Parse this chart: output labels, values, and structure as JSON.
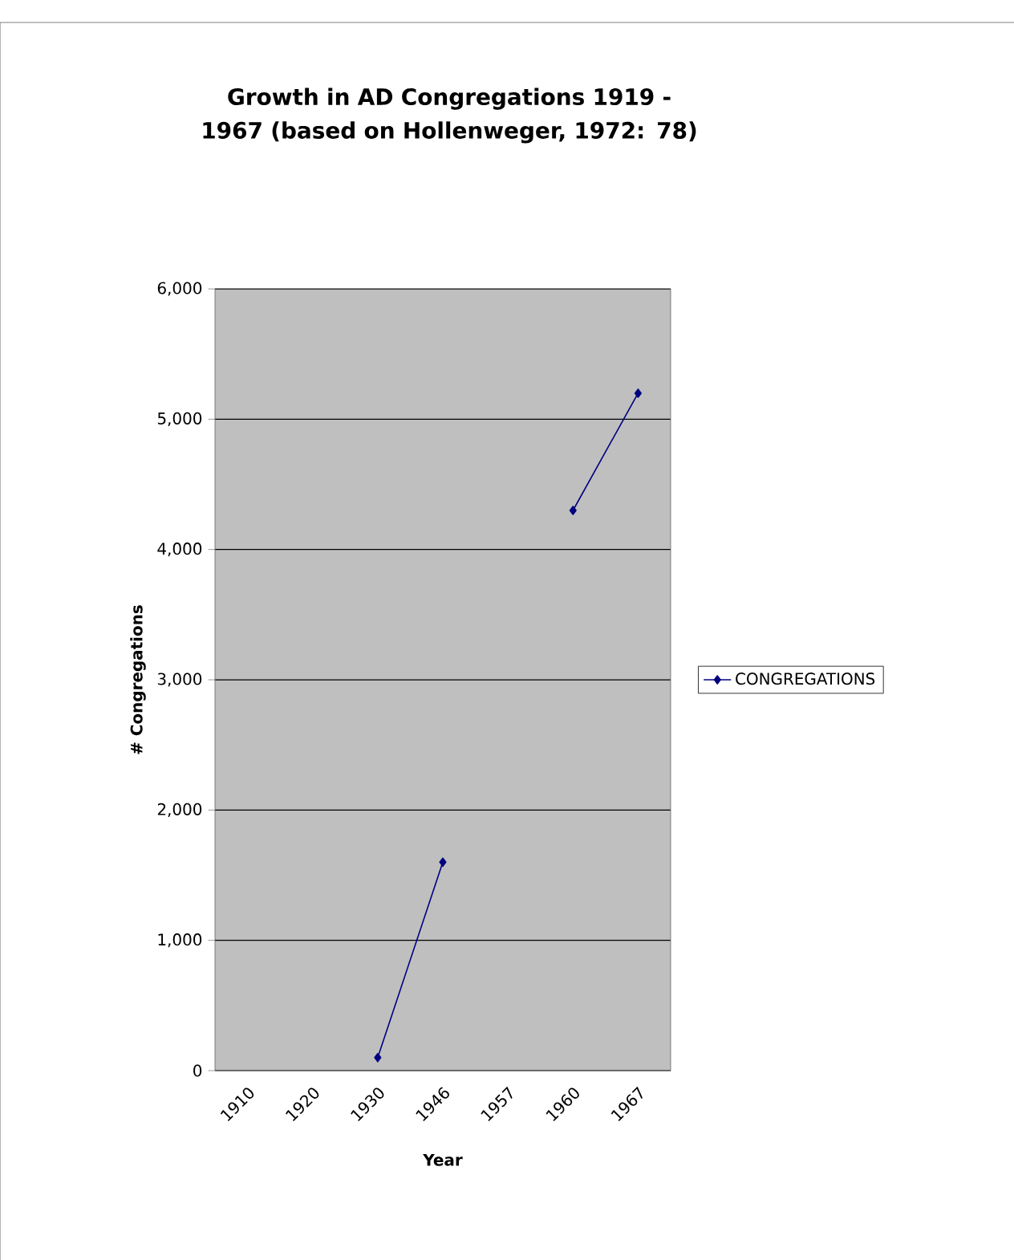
{
  "chart_data": {
    "type": "line",
    "title": "Growth in AD Congregations 1919 - 1967 (based on Hollenweger, 1972: 78)",
    "xlabel": "Year",
    "ylabel": "# Congregations",
    "categories": [
      "1910",
      "1920",
      "1930",
      "1946",
      "1957",
      "1960",
      "1967"
    ],
    "series": [
      {
        "name": "CONGREGATIONS",
        "color": "#000080",
        "values": [
          null,
          null,
          100,
          1600,
          null,
          4300,
          5200
        ]
      }
    ],
    "ylim": [
      0,
      6000
    ],
    "yticks": [
      0,
      {
        "value": 1000,
        "label": "1,000"
      },
      {
        "value": 2000,
        "label": "2,000"
      },
      {
        "value": 3000,
        "label": "3,000"
      },
      {
        "value": 4000,
        "label": "4,000"
      },
      {
        "value": 5000,
        "label": "5,000"
      },
      {
        "value": 6000,
        "label": "6,000"
      }
    ],
    "grid": "y",
    "legend": "right",
    "marker": "diamond",
    "line_style": "solid"
  }
}
